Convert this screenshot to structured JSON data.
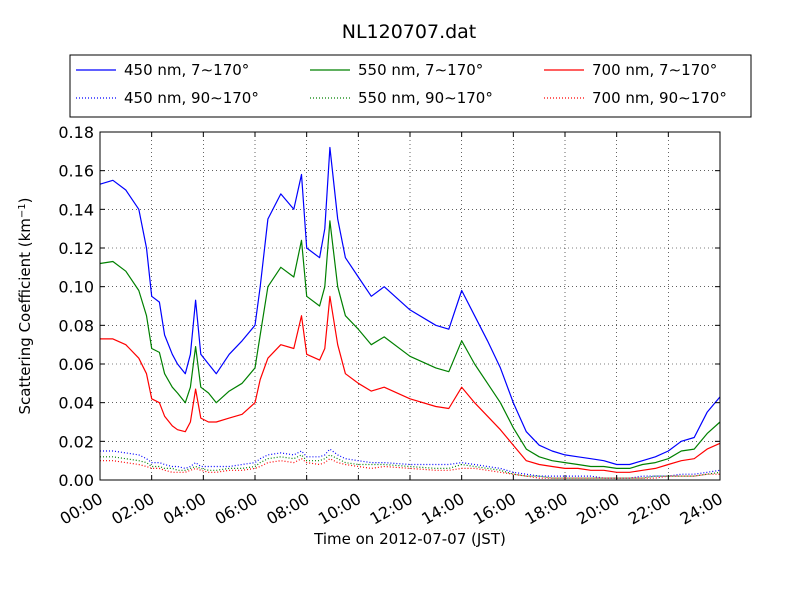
{
  "chart_data": {
    "type": "line",
    "title": "NL120707.dat",
    "xlabel": "Time on 2012-07-07 (JST)",
    "ylabel_main": "Scattering Coefficient (km",
    "ylabel_sup": "−1",
    "ylabel_close": ")",
    "x_unit": "hours",
    "xlim": [
      0,
      24
    ],
    "ylim": [
      0,
      0.18
    ],
    "grid": true,
    "legend_position": "top",
    "x_ticks": [
      0,
      2,
      4,
      6,
      8,
      10,
      12,
      14,
      16,
      18,
      20,
      22,
      24
    ],
    "x_tick_labels": [
      "00:00",
      "02:00",
      "04:00",
      "06:00",
      "08:00",
      "10:00",
      "12:00",
      "14:00",
      "16:00",
      "18:00",
      "20:00",
      "22:00",
      "24:00"
    ],
    "y_ticks": [
      0,
      0.02,
      0.04,
      0.06,
      0.08,
      0.1,
      0.12,
      0.14,
      0.16,
      0.18
    ],
    "y_tick_labels": [
      "0.00",
      "0.02",
      "0.04",
      "0.06",
      "0.08",
      "0.10",
      "0.12",
      "0.14",
      "0.16",
      "0.18"
    ],
    "x": [
      0,
      0.5,
      1,
      1.5,
      1.8,
      2,
      2.3,
      2.5,
      2.8,
      3,
      3.3,
      3.5,
      3.7,
      3.9,
      4.2,
      4.5,
      5,
      5.5,
      6,
      6.2,
      6.5,
      7,
      7.5,
      7.8,
      8,
      8.5,
      8.7,
      8.9,
      9.2,
      9.5,
      10,
      10.5,
      11,
      12,
      13,
      13.5,
      14,
      14.5,
      15,
      15.5,
      16,
      16.5,
      17,
      17.5,
      18,
      18.5,
      19,
      19.5,
      20,
      20.5,
      21,
      21.5,
      22,
      22.5,
      23,
      23.5,
      24
    ],
    "series": [
      {
        "name": "450 nm, 7∼170°",
        "color": "#0000ff",
        "style": "solid",
        "values": [
          0.153,
          0.155,
          0.15,
          0.14,
          0.12,
          0.095,
          0.092,
          0.075,
          0.065,
          0.06,
          0.055,
          0.065,
          0.093,
          0.065,
          0.06,
          0.055,
          0.065,
          0.072,
          0.08,
          0.1,
          0.135,
          0.148,
          0.14,
          0.158,
          0.12,
          0.115,
          0.13,
          0.172,
          0.135,
          0.115,
          0.105,
          0.095,
          0.1,
          0.088,
          0.08,
          0.078,
          0.098,
          0.085,
          0.072,
          0.058,
          0.04,
          0.025,
          0.018,
          0.015,
          0.013,
          0.012,
          0.011,
          0.01,
          0.008,
          0.008,
          0.01,
          0.012,
          0.015,
          0.02,
          0.022,
          0.035,
          0.043
        ]
      },
      {
        "name": "550 nm, 7∼170°",
        "color": "#008000",
        "style": "solid",
        "values": [
          0.112,
          0.113,
          0.108,
          0.098,
          0.085,
          0.068,
          0.066,
          0.055,
          0.048,
          0.045,
          0.04,
          0.048,
          0.069,
          0.048,
          0.045,
          0.04,
          0.046,
          0.05,
          0.058,
          0.075,
          0.1,
          0.11,
          0.105,
          0.124,
          0.095,
          0.09,
          0.1,
          0.134,
          0.1,
          0.085,
          0.078,
          0.07,
          0.074,
          0.064,
          0.058,
          0.056,
          0.072,
          0.06,
          0.05,
          0.04,
          0.027,
          0.016,
          0.012,
          0.01,
          0.009,
          0.008,
          0.007,
          0.007,
          0.006,
          0.006,
          0.008,
          0.009,
          0.011,
          0.015,
          0.016,
          0.024,
          0.03
        ]
      },
      {
        "name": "700 nm, 7∼170°",
        "color": "#ff0000",
        "style": "solid",
        "values": [
          0.073,
          0.073,
          0.07,
          0.063,
          0.055,
          0.042,
          0.04,
          0.033,
          0.028,
          0.026,
          0.025,
          0.03,
          0.047,
          0.032,
          0.03,
          0.03,
          0.032,
          0.034,
          0.04,
          0.052,
          0.063,
          0.07,
          0.068,
          0.085,
          0.065,
          0.062,
          0.068,
          0.095,
          0.07,
          0.055,
          0.05,
          0.046,
          0.048,
          0.042,
          0.038,
          0.037,
          0.048,
          0.04,
          0.033,
          0.026,
          0.018,
          0.01,
          0.008,
          0.007,
          0.006,
          0.006,
          0.005,
          0.005,
          0.004,
          0.004,
          0.005,
          0.006,
          0.008,
          0.01,
          0.011,
          0.016,
          0.019
        ]
      },
      {
        "name": "450 nm, 90∼170°",
        "color": "#0000ff",
        "style": "dotted",
        "values": [
          0.015,
          0.015,
          0.014,
          0.013,
          0.011,
          0.009,
          0.009,
          0.008,
          0.007,
          0.007,
          0.006,
          0.007,
          0.009,
          0.007,
          0.007,
          0.007,
          0.007,
          0.008,
          0.009,
          0.011,
          0.013,
          0.014,
          0.013,
          0.015,
          0.012,
          0.012,
          0.013,
          0.016,
          0.013,
          0.011,
          0.01,
          0.009,
          0.009,
          0.008,
          0.008,
          0.008,
          0.009,
          0.008,
          0.007,
          0.006,
          0.004,
          0.003,
          0.002,
          0.002,
          0.002,
          0.002,
          0.002,
          0.001,
          0.001,
          0.001,
          0.002,
          0.002,
          0.002,
          0.003,
          0.003,
          0.004,
          0.005
        ]
      },
      {
        "name": "550 nm, 90∼170°",
        "color": "#008000",
        "style": "dotted",
        "values": [
          0.012,
          0.012,
          0.011,
          0.01,
          0.009,
          0.007,
          0.007,
          0.006,
          0.006,
          0.005,
          0.005,
          0.006,
          0.007,
          0.006,
          0.005,
          0.005,
          0.006,
          0.006,
          0.007,
          0.009,
          0.011,
          0.012,
          0.011,
          0.013,
          0.01,
          0.01,
          0.011,
          0.013,
          0.011,
          0.009,
          0.008,
          0.008,
          0.008,
          0.007,
          0.006,
          0.006,
          0.008,
          0.007,
          0.006,
          0.005,
          0.003,
          0.002,
          0.002,
          0.001,
          0.001,
          0.001,
          0.001,
          0.001,
          0.001,
          0.001,
          0.001,
          0.002,
          0.002,
          0.002,
          0.002,
          0.003,
          0.004
        ]
      },
      {
        "name": "700 nm, 90∼170°",
        "color": "#ff0000",
        "style": "dotted",
        "values": [
          0.01,
          0.01,
          0.009,
          0.008,
          0.007,
          0.006,
          0.006,
          0.005,
          0.004,
          0.004,
          0.004,
          0.005,
          0.006,
          0.005,
          0.004,
          0.004,
          0.005,
          0.005,
          0.006,
          0.007,
          0.009,
          0.01,
          0.009,
          0.011,
          0.009,
          0.008,
          0.009,
          0.011,
          0.009,
          0.008,
          0.007,
          0.006,
          0.007,
          0.006,
          0.005,
          0.005,
          0.006,
          0.006,
          0.005,
          0.004,
          0.003,
          0.002,
          0.001,
          0.001,
          0.001,
          0.001,
          0.001,
          0.001,
          0.001,
          0.001,
          0.001,
          0.001,
          0.002,
          0.002,
          0.002,
          0.003,
          0.003
        ]
      }
    ],
    "legend_order": [
      0,
      1,
      2,
      3,
      4,
      5
    ]
  }
}
